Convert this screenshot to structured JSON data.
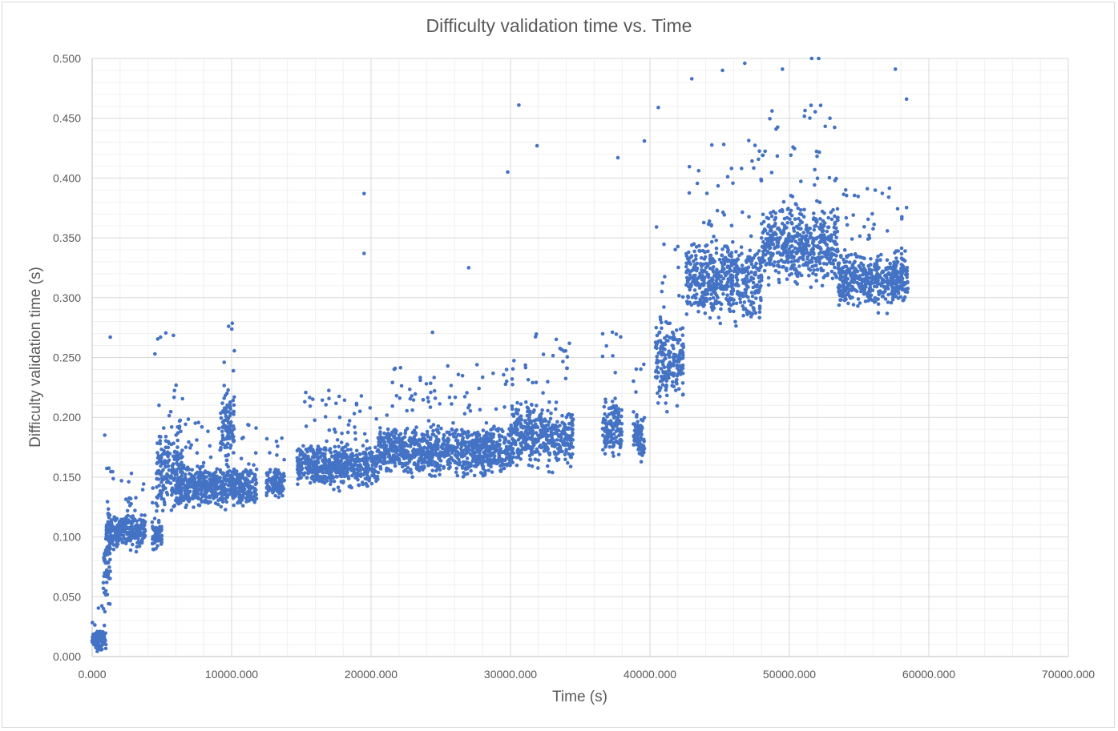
{
  "chart_data": {
    "type": "scatter",
    "title": "Difficulty validation time vs. Time",
    "xlabel": "Time (s)",
    "ylabel": "Difficulty validation time (s)",
    "xlim": [
      0,
      70000
    ],
    "ylim": [
      0,
      0.5
    ],
    "x_ticks": [
      "0.000",
      "10000.000",
      "20000.000",
      "30000.000",
      "40000.000",
      "50000.000",
      "60000.000",
      "70000.000"
    ],
    "y_ticks": [
      "0.000",
      "0.050",
      "0.100",
      "0.150",
      "0.200",
      "0.250",
      "0.300",
      "0.350",
      "0.400",
      "0.450",
      "0.500"
    ],
    "grid": true,
    "series": [
      {
        "color": "#4472c4",
        "marker": "circle",
        "approximate_point_count": 40000,
        "segments": [
          {
            "x_range": [
              0,
              1000
            ],
            "y_range": [
              0.003,
              0.025
            ]
          },
          {
            "x_range": [
              800,
              1300
            ],
            "y_range": [
              0.03,
              0.12
            ]
          },
          {
            "x_range": [
              1000,
              3800
            ],
            "y_range": [
              0.085,
              0.125
            ]
          },
          {
            "x_range": [
              4300,
              5000
            ],
            "y_range": [
              0.085,
              0.12
            ]
          },
          {
            "x_range": [
              4600,
              6500
            ],
            "y_range": [
              0.11,
              0.2
            ]
          },
          {
            "x_range": [
              6000,
              11800
            ],
            "y_range": [
              0.12,
              0.165
            ]
          },
          {
            "x_range": [
              9200,
              10200
            ],
            "y_range": [
              0.15,
              0.235
            ]
          },
          {
            "x_range": [
              12500,
              13800
            ],
            "y_range": [
              0.13,
              0.16
            ]
          },
          {
            "x_range": [
              14700,
              20500
            ],
            "y_range": [
              0.135,
              0.185
            ]
          },
          {
            "x_range": [
              20500,
              30000
            ],
            "y_range": [
              0.145,
              0.2
            ]
          },
          {
            "x_range": [
              30000,
              34500
            ],
            "y_range": [
              0.15,
              0.22
            ]
          },
          {
            "x_range": [
              36600,
              38000
            ],
            "y_range": [
              0.16,
              0.225
            ]
          },
          {
            "x_range": [
              38800,
              39600
            ],
            "y_range": [
              0.155,
              0.21
            ]
          },
          {
            "x_range": [
              40400,
              42400
            ],
            "y_range": [
              0.2,
              0.29
            ]
          },
          {
            "x_range": [
              42600,
              48000
            ],
            "y_range": [
              0.27,
              0.36
            ]
          },
          {
            "x_range": [
              48000,
              53500
            ],
            "y_range": [
              0.3,
              0.39
            ]
          },
          {
            "x_range": [
              53500,
              58500
            ],
            "y_range": [
              0.285,
              0.345
            ]
          }
        ],
        "sample_outliers": [
          [
            1300,
            0.267
          ],
          [
            4500,
            0.253
          ],
          [
            19500,
            0.387
          ],
          [
            19500,
            0.337
          ],
          [
            30600,
            0.461
          ],
          [
            29800,
            0.405
          ],
          [
            31900,
            0.427
          ],
          [
            37700,
            0.417
          ],
          [
            39600,
            0.431
          ],
          [
            40600,
            0.459
          ],
          [
            43000,
            0.483
          ],
          [
            45200,
            0.49
          ],
          [
            46800,
            0.496
          ],
          [
            49500,
            0.491
          ],
          [
            51600,
            0.5
          ],
          [
            52100,
            0.5
          ],
          [
            57600,
            0.491
          ],
          [
            58400,
            0.466
          ],
          [
            27000,
            0.325
          ],
          [
            24400,
            0.271
          ]
        ]
      }
    ]
  }
}
